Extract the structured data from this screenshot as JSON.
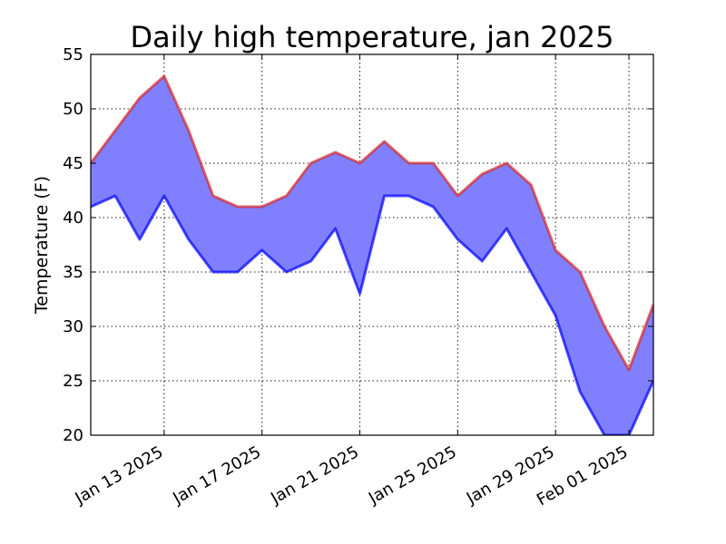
{
  "chart_data": {
    "type": "area",
    "title": "Daily high temperature, jan 2025",
    "xlabel": "",
    "ylabel": "Temperature (F)",
    "ylim": [
      20,
      55
    ],
    "xlim": [
      "2025-01-10",
      "2025-02-02"
    ],
    "grid": true,
    "x": [
      "2025-01-10",
      "2025-01-11",
      "2025-01-12",
      "2025-01-13",
      "2025-01-14",
      "2025-01-15",
      "2025-01-16",
      "2025-01-17",
      "2025-01-18",
      "2025-01-19",
      "2025-01-20",
      "2025-01-21",
      "2025-01-22",
      "2025-01-23",
      "2025-01-24",
      "2025-01-25",
      "2025-01-26",
      "2025-01-27",
      "2025-01-28",
      "2025-01-29",
      "2025-01-30",
      "2025-01-31",
      "2025-02-01",
      "2025-02-02"
    ],
    "series": [
      {
        "color": "#d62728",
        "values": [
          45,
          48,
          51,
          53,
          48,
          42,
          41,
          41,
          42,
          45,
          46,
          45,
          47,
          45,
          45,
          42,
          44,
          45,
          43,
          37,
          35,
          30,
          26,
          32
        ]
      },
      {
        "color": "#0000ff",
        "values": [
          41,
          42,
          38,
          42,
          38,
          35,
          35,
          37,
          35,
          36,
          39,
          33,
          42,
          42,
          41,
          38,
          36,
          39,
          35,
          31,
          24,
          20,
          20,
          25
        ]
      }
    ],
    "fill_color": "#8080ff",
    "yticks": [
      20,
      25,
      30,
      35,
      40,
      45,
      50,
      55
    ],
    "xticks": [
      {
        "date": "2025-01-13",
        "label": "Jan 13 2025"
      },
      {
        "date": "2025-01-17",
        "label": "Jan 17 2025"
      },
      {
        "date": "2025-01-21",
        "label": "Jan 21 2025"
      },
      {
        "date": "2025-01-25",
        "label": "Jan 25 2025"
      },
      {
        "date": "2025-01-29",
        "label": "Jan 29 2025"
      },
      {
        "date": "2025-02-01",
        "label": "Feb 01 2025"
      }
    ]
  }
}
